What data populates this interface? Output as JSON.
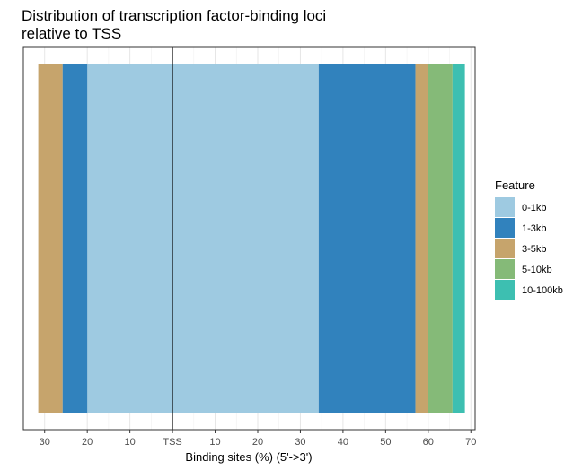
{
  "chart_data": {
    "type": "bar",
    "orientation": "horizontal-stacked",
    "title_lines": [
      "Distribution of transcription factor-binding loci",
      "relative to TSS"
    ],
    "xlabel": "Binding sites (%) (5'->3')",
    "ylabel": "",
    "xlim": [
      -35,
      71
    ],
    "x_tick_values": [
      -30,
      -20,
      -10,
      0,
      10,
      20,
      30,
      40,
      50,
      60,
      70
    ],
    "x_tick_labels": [
      "30",
      "20",
      "10",
      "TSS",
      "10",
      "20",
      "30",
      "40",
      "50",
      "60",
      "70"
    ],
    "reference_line": 0,
    "grid": true,
    "legend": {
      "title": "Feature",
      "position": "right",
      "entries": [
        {
          "label": "0-1kb",
          "color": "#9ECAE1"
        },
        {
          "label": "1-3kb",
          "color": "#3182BD"
        },
        {
          "label": "3-5kb",
          "color": "#C6A46C"
        },
        {
          "label": "5-10kb",
          "color": "#85BA78"
        },
        {
          "label": "10-100kb",
          "color": "#3DBFB1"
        }
      ]
    },
    "series": [
      {
        "name": "0-1kb",
        "side": "upstream",
        "range": [
          0,
          -20.0
        ]
      },
      {
        "name": "1-3kb",
        "side": "upstream",
        "range": [
          -20.0,
          -25.8
        ]
      },
      {
        "name": "3-5kb",
        "side": "upstream",
        "range": [
          -25.8,
          -31.5
        ]
      },
      {
        "name": "0-1kb",
        "side": "downstream",
        "range": [
          0,
          34.3
        ]
      },
      {
        "name": "1-3kb",
        "side": "downstream",
        "range": [
          34.3,
          57.0
        ]
      },
      {
        "name": "3-5kb",
        "side": "downstream",
        "range": [
          57.0,
          60.0
        ]
      },
      {
        "name": "5-10kb",
        "side": "downstream",
        "range": [
          60.0,
          65.7
        ]
      },
      {
        "name": "10-100kb",
        "side": "downstream",
        "range": [
          65.7,
          68.6
        ]
      }
    ]
  }
}
